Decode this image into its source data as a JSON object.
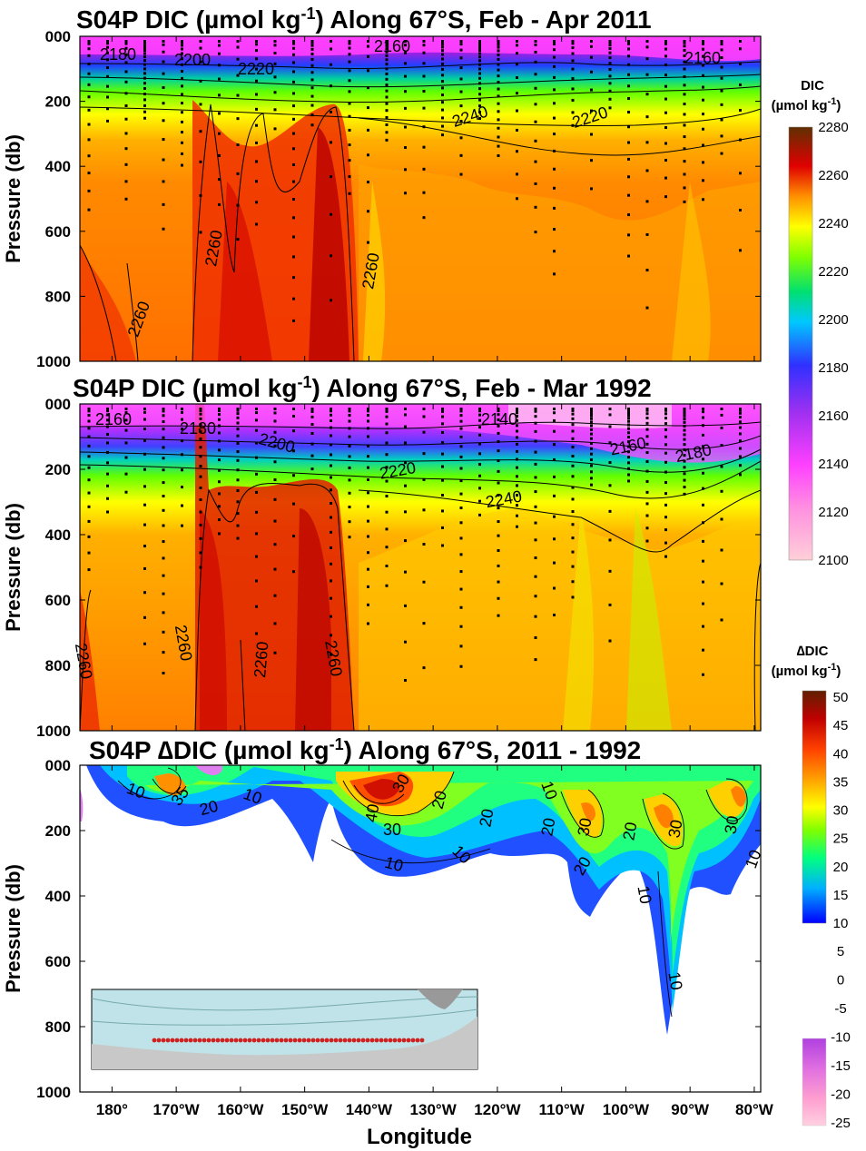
{
  "chart_data": [
    {
      "type": "heatmap",
      "title_main": "S04P DIC (µmol kg",
      "title_sup": "-1",
      "title_tail": ") Along 67°S, Feb - Apr 2011",
      "ylabel": "Pressure (db)",
      "yticks": [
        "000",
        "200",
        "400",
        "600",
        "800",
        "1000"
      ],
      "ylim": [
        1000,
        0
      ],
      "xlim": [
        -185,
        79
      ],
      "contour_labels": [
        "2180",
        "2200",
        "2220",
        "2160",
        "2160",
        "2220",
        "2240",
        "2260",
        "2260",
        "2260"
      ],
      "colorbar": {
        "title_line1": "DIC",
        "title_line2": "(µmol kg",
        "sup": "-1",
        "close": ")",
        "ticks": [
          "2280",
          "2260",
          "2240",
          "2220",
          "2200",
          "2180",
          "2160",
          "2140",
          "2120",
          "2100"
        ]
      }
    },
    {
      "type": "heatmap",
      "title_main": "S04P DIC (µmol kg",
      "title_sup": "-1",
      "title_tail": ") Along 67°S, Feb - Mar 1992",
      "ylabel": "Pressure (db)",
      "yticks": [
        "000",
        "200",
        "400",
        "600",
        "800",
        "1000"
      ],
      "ylim": [
        1000,
        0
      ],
      "xlim": [
        -185,
        79
      ],
      "contour_labels": [
        "2160",
        "2180",
        "2200",
        "2220",
        "2140",
        "2160",
        "2180",
        "2240",
        "2260",
        "2260",
        "2260",
        "2260"
      ]
    },
    {
      "type": "heatmap",
      "title_main": "S04P ∆DIC (µmol kg",
      "title_sup": "-1",
      "title_tail": ") Along 67°S, 2011 - 1992",
      "ylabel": "Pressure (db)",
      "xlabel": "Longitude",
      "yticks": [
        "000",
        "200",
        "400",
        "600",
        "800",
        "1000"
      ],
      "xticks": [
        "180°",
        "170°W",
        "160°W",
        "150°W",
        "140°W",
        "130°W",
        "120°W",
        "110°W",
        "100°W",
        "90°W",
        "80°W"
      ],
      "ylim": [
        1000,
        0
      ],
      "xlim": [
        -185,
        79
      ],
      "contour_labels": [
        "10",
        "35",
        "20",
        "10",
        "40",
        "30",
        "30",
        "10",
        "20",
        "20",
        "10",
        "10",
        "20",
        "30",
        "20",
        "20",
        "30",
        "10",
        "10",
        "30",
        "10"
      ],
      "colorbar_positive": {
        "title_line1": "∆DIC",
        "title_line2": "(µmol kg",
        "sup": "-1",
        "close": ")",
        "ticks": [
          "50",
          "45",
          "40",
          "35",
          "30",
          "25",
          "20",
          "15",
          "10"
        ]
      },
      "colorbar_negative": {
        "ticks": [
          "5",
          "0",
          "-5",
          "-10",
          "-15",
          "-20",
          "-25"
        ]
      }
    }
  ],
  "colors": {
    "dic_scale": [
      "#ffc8d2",
      "#ff90e0",
      "#ff40ff",
      "#c040ff",
      "#8020e0",
      "#3030ff",
      "#00c0ff",
      "#00e080",
      "#40ff00",
      "#ffff00",
      "#ffa000",
      "#ff6000",
      "#e00000",
      "#900000",
      "#502000"
    ],
    "delta_scale": [
      "#0000ff",
      "#00c0ff",
      "#00ff80",
      "#80ff00",
      "#ffff00",
      "#ffa000",
      "#ff4000",
      "#c00000",
      "#602000"
    ],
    "delta_neg": [
      "#ffd0e0",
      "#ffa0d0",
      "#e070e0",
      "#b040e0"
    ]
  }
}
